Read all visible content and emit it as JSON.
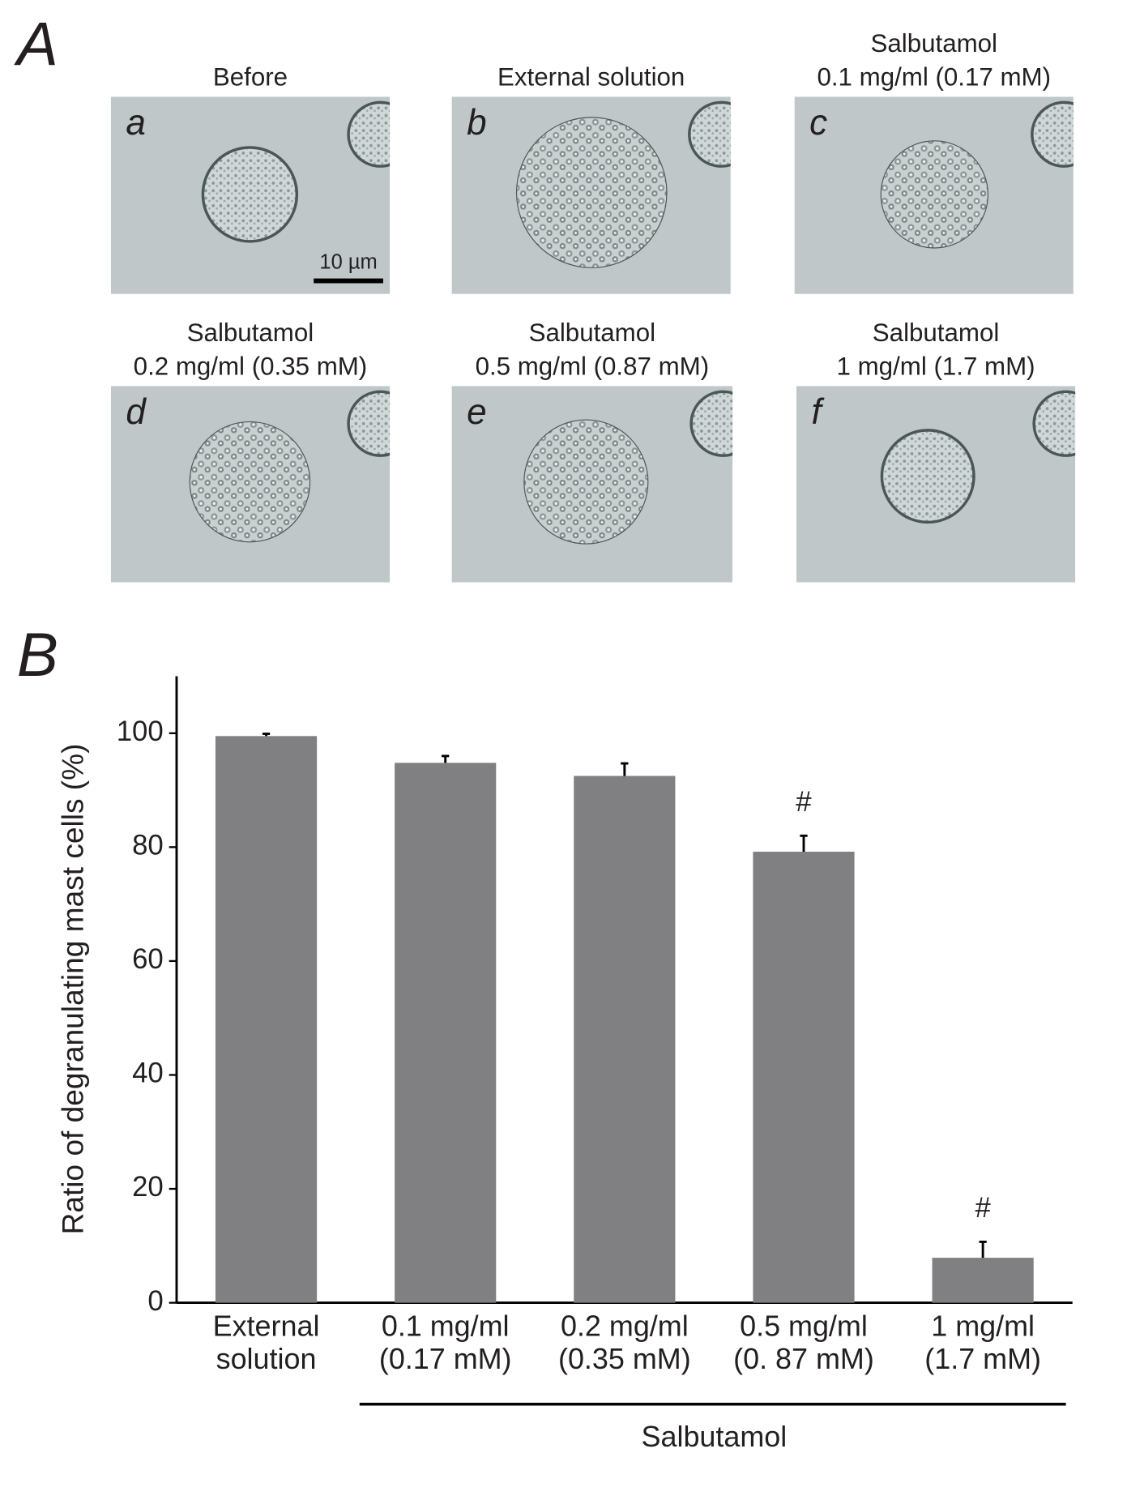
{
  "panel_a": {
    "label": "A",
    "scale_bar": "10 µm",
    "images": [
      {
        "letter": "a",
        "title": [
          "Before"
        ]
      },
      {
        "letter": "b",
        "title": [
          "External solution"
        ]
      },
      {
        "letter": "c",
        "title": [
          "Salbutamol",
          "0.1 mg/ml (0.17 mM)"
        ]
      },
      {
        "letter": "d",
        "title": [
          "Salbutamol",
          "0.2 mg/ml (0.35 mM)"
        ]
      },
      {
        "letter": "e",
        "title": [
          "Salbutamol",
          "0.5 mg/ml (0.87 mM)"
        ]
      },
      {
        "letter": "f",
        "title": [
          "Salbutamol",
          "1 mg/ml (1.7 mM)"
        ]
      }
    ]
  },
  "chart_data": {
    "type": "bar",
    "panel_label": "B",
    "ylabel": "Ratio of degranulating mast cells (%)",
    "categories": [
      [
        "External",
        "solution"
      ],
      [
        "0.1 mg/ml",
        "(0.17 mM)"
      ],
      [
        "0.2 mg/ml",
        "(0.35 mM)"
      ],
      [
        "0.5 mg/ml",
        "(0. 87 mM)"
      ],
      [
        "1 mg/ml",
        "(1.7 mM)"
      ]
    ],
    "values": [
      99.5,
      94.8,
      92.5,
      79.2,
      7.9
    ],
    "errors": [
      0.4,
      1.2,
      2.2,
      2.8,
      2.8
    ],
    "value_annotations": [
      {
        "index": 3,
        "text": "#"
      },
      {
        "index": 4,
        "text": "#"
      }
    ],
    "group_label": "Salbutamol",
    "color": "#808083",
    "ylim": [
      0,
      110
    ],
    "yticks": [
      0,
      20,
      40,
      60,
      80,
      100
    ],
    "grid": false
  }
}
